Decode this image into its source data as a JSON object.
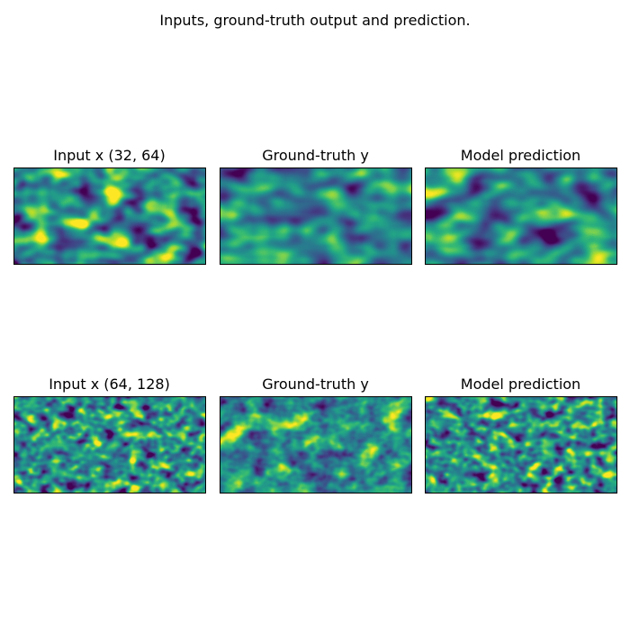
{
  "title": "Inputs, ground-truth output and prediction.",
  "panels": [
    {
      "title": "Input x (32, 64)"
    },
    {
      "title": "Ground-truth y"
    },
    {
      "title": "Model prediction"
    },
    {
      "title": "Input x (64, 128)"
    },
    {
      "title": "Ground-truth y"
    },
    {
      "title": "Model prediction"
    }
  ]
}
